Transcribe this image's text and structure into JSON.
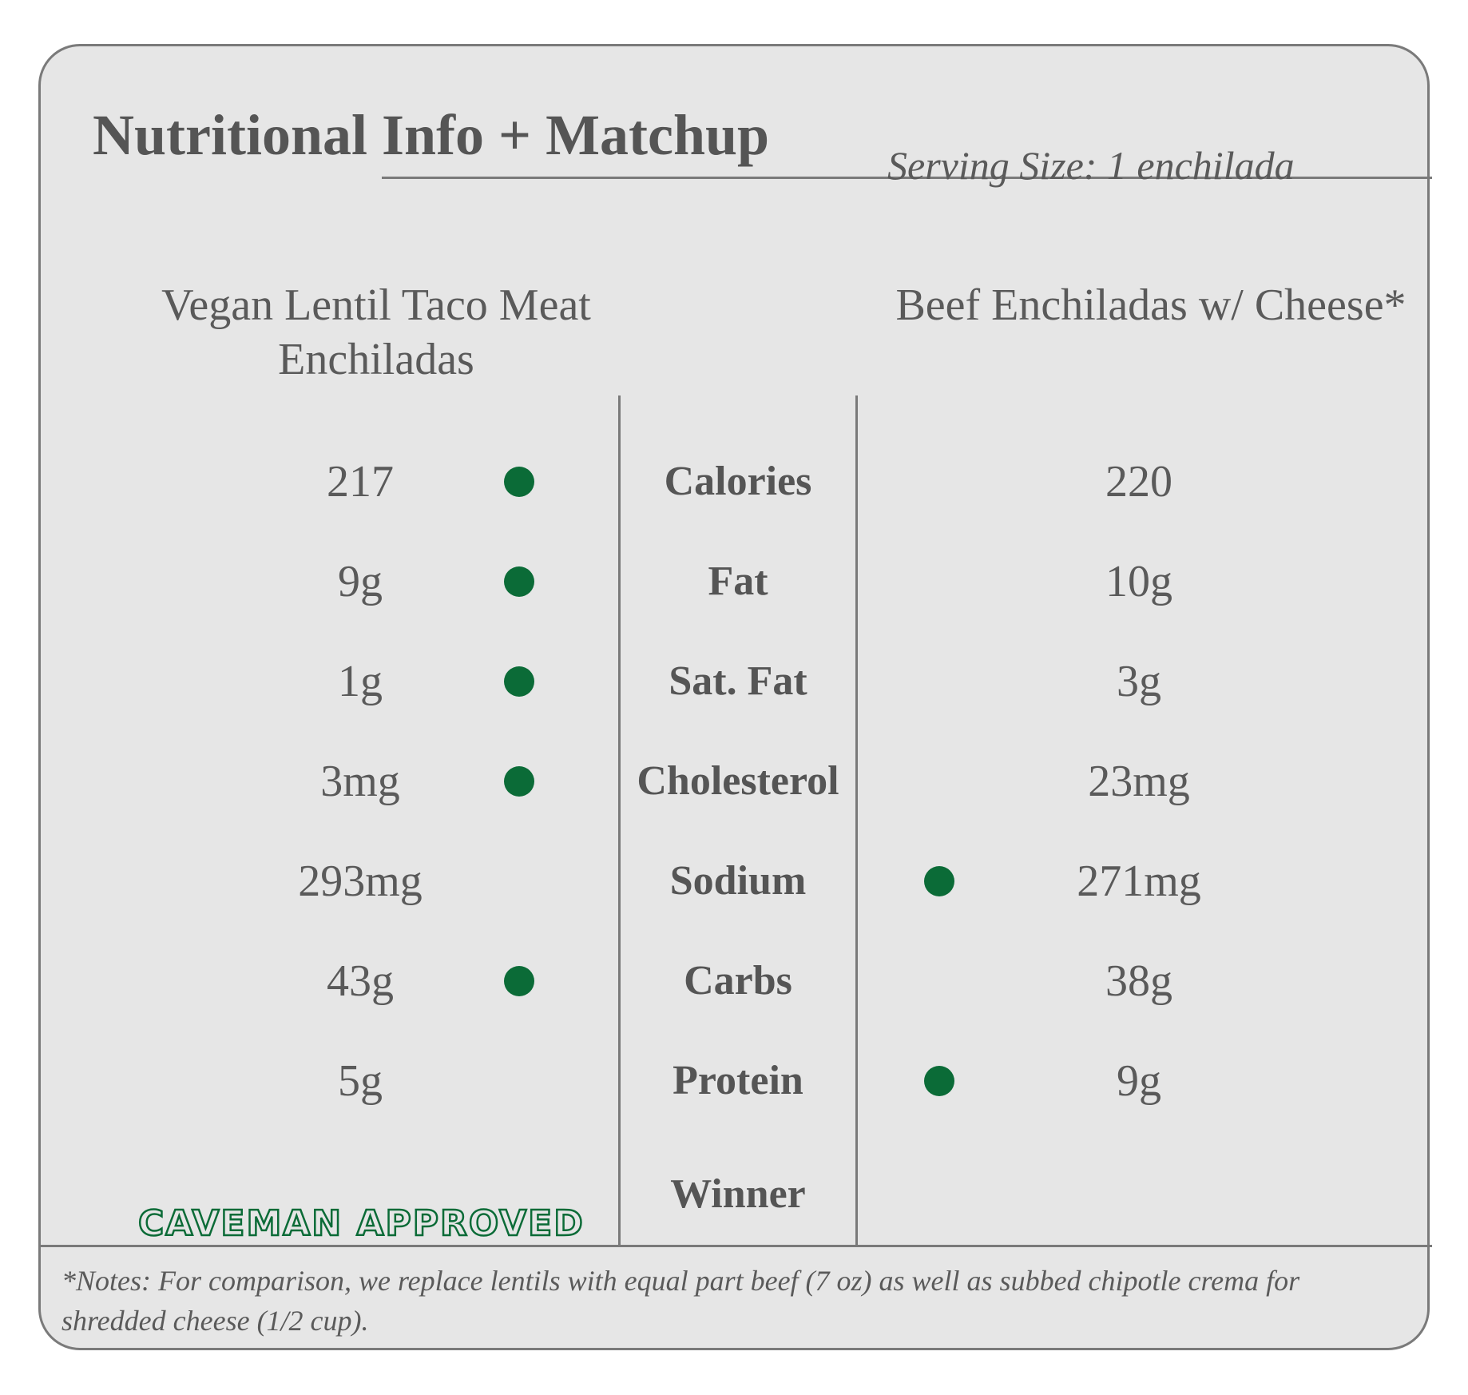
{
  "header": {
    "title": "Nutritional Info + Matchup",
    "serving_size": "Serving Size: 1 enchilada"
  },
  "columns": {
    "left_title": "Vegan Lentil Taco Meat Enchiladas",
    "right_title": "Beef Enchiladas w/ Cheese*"
  },
  "rows": [
    {
      "label": "Calories",
      "left": "217",
      "right": "220",
      "winner": "left"
    },
    {
      "label": "Fat",
      "left": "9g",
      "right": "10g",
      "winner": "left"
    },
    {
      "label": "Sat. Fat",
      "left": "1g",
      "right": "3g",
      "winner": "left"
    },
    {
      "label": "Cholesterol",
      "left": "3mg",
      "right": "23mg",
      "winner": "left"
    },
    {
      "label": "Sodium",
      "left": "293mg",
      "right": "271mg",
      "winner": "right"
    },
    {
      "label": "Carbs",
      "left": "43g",
      "right": "38g",
      "winner": "left"
    },
    {
      "label": "Protein",
      "left": "5g",
      "right": "9g",
      "winner": "right"
    }
  ],
  "winner_row": {
    "label": "Winner",
    "left_badge": "CAVEMAN APPROVED"
  },
  "notes": "*Notes: For comparison, we replace lentils with equal part beef (7 oz) as well as subbed chipotle crema for shredded cheese (1/2 cup).",
  "colors": {
    "winner_dot": "#0b6b37",
    "text": "#5a5a5a",
    "card_bg": "#e6e6e6",
    "border": "#7a7a7a"
  }
}
